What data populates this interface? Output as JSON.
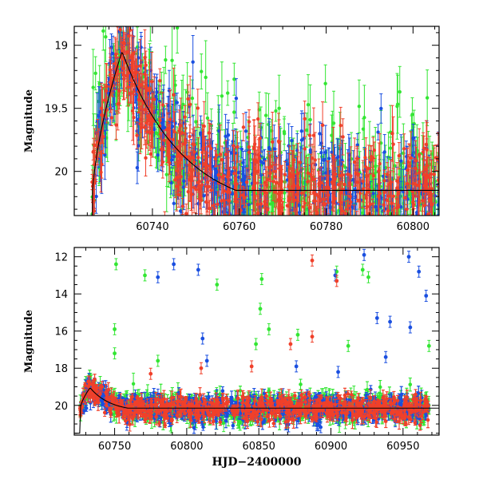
{
  "chart_data": [
    {
      "type": "scatter",
      "panel": "top",
      "ylabel": "Magnitude",
      "xlim": [
        60722,
        60806
      ],
      "ylim": [
        20.35,
        18.85
      ],
      "y_inverted": true,
      "xticks": [
        60740,
        60760,
        60780,
        60800
      ],
      "xtick_labels": [
        "60740",
        "60760",
        "60780",
        "60800"
      ],
      "yticks": [
        19,
        19.5,
        20
      ],
      "ytick_labels": [
        "19",
        "19.5",
        "20"
      ],
      "series": [
        {
          "name": "green",
          "color": "#33e633"
        },
        {
          "name": "blue",
          "color": "#1a4fe0"
        },
        {
          "name": "red",
          "color": "#f0402a"
        }
      ],
      "model_curve": {
        "color": "#000000",
        "description": "fitted light curve",
        "peak_x": 60733,
        "peak_y": 19.05
      }
    },
    {
      "type": "scatter",
      "panel": "bottom",
      "xlabel": "HJD−2400000",
      "ylabel": "Magnitude",
      "xlim": [
        60722,
        60975
      ],
      "ylim": [
        21.6,
        11.5
      ],
      "y_inverted": true,
      "xticks": [
        60750,
        60800,
        60850,
        60900,
        60950
      ],
      "xtick_labels": [
        "60750",
        "60800",
        "60850",
        "60900",
        "60950"
      ],
      "yticks": [
        12,
        14,
        16,
        18,
        20
      ],
      "ytick_labels": [
        "12",
        "14",
        "16",
        "18",
        "20"
      ],
      "series": [
        {
          "name": "green",
          "color": "#33e633"
        },
        {
          "name": "blue",
          "color": "#1a4fe0"
        },
        {
          "name": "red",
          "color": "#f0402a"
        }
      ],
      "outliers": {
        "green": [
          [
            60751,
            12.4
          ],
          [
            60750,
            15.9
          ],
          [
            60750,
            17.2
          ],
          [
            60771,
            13.0
          ],
          [
            60780,
            17.6
          ],
          [
            60821,
            13.5
          ],
          [
            60852,
            13.2
          ],
          [
            60851,
            14.8
          ],
          [
            60848,
            16.7
          ],
          [
            60857,
            15.9
          ],
          [
            60877,
            16.2
          ],
          [
            60904,
            12.8
          ],
          [
            60922,
            12.7
          ],
          [
            60926,
            13.1
          ],
          [
            60912,
            16.8
          ],
          [
            60968,
            16.8
          ]
        ],
        "blue": [
          [
            60780,
            13.1
          ],
          [
            60791,
            12.4
          ],
          [
            60808,
            12.7
          ],
          [
            60811,
            16.4
          ],
          [
            60814,
            17.6
          ],
          [
            60903,
            13.0
          ],
          [
            60923,
            11.9
          ],
          [
            60932,
            15.3
          ],
          [
            60941,
            15.5
          ],
          [
            60938,
            17.4
          ],
          [
            60955,
            15.8
          ],
          [
            60954,
            12.0
          ],
          [
            60961,
            12.8
          ],
          [
            60966,
            14.1
          ],
          [
            60876,
            17.9
          ],
          [
            60905,
            18.2
          ]
        ],
        "red": [
          [
            60887,
            12.2
          ],
          [
            60904,
            13.3
          ],
          [
            60887,
            16.3
          ],
          [
            60872,
            16.7
          ],
          [
            60845,
            17.9
          ],
          [
            60810,
            18.0
          ],
          [
            60775,
            18.3
          ]
        ]
      },
      "model_curve": {
        "color": "#000000",
        "description": "fitted light curve",
        "peak_x": 60733,
        "peak_y": 19.05
      }
    }
  ]
}
